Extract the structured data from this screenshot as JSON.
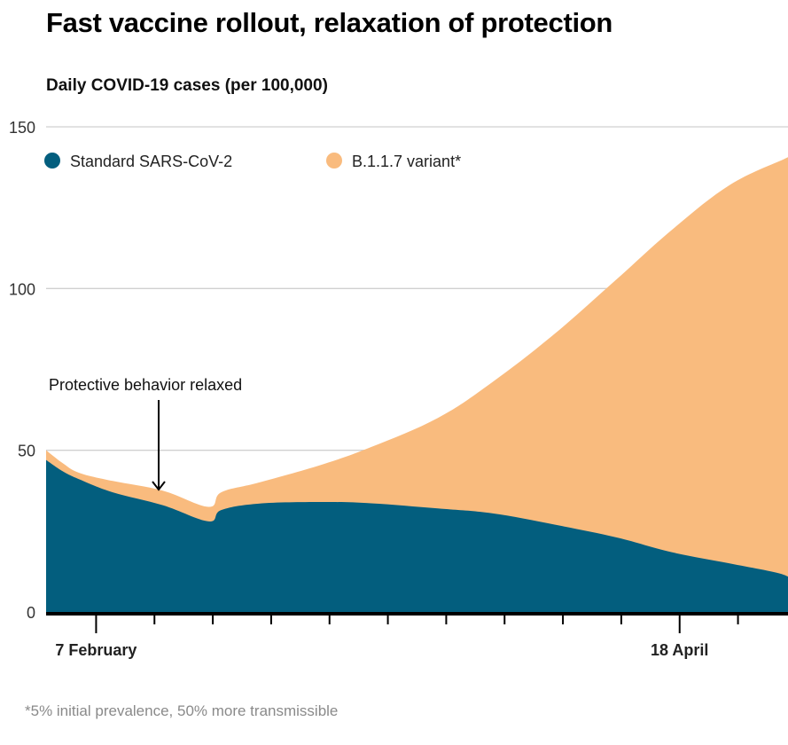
{
  "chart_data": {
    "type": "area",
    "stacked": true,
    "title": "Fast vaccine rollout, relaxation of protection",
    "subtitle": "Daily COVID-19 cases (per 100,000)",
    "xlabel": "",
    "ylabel": "Daily COVID-19 cases (per 100,000)",
    "ylim": [
      0,
      150
    ],
    "yticks": [
      0,
      50,
      100,
      150
    ],
    "ytick_labels": [
      "0",
      "50",
      "100",
      "150"
    ],
    "grid": true,
    "x_unit": "days since start",
    "xlim": [
      0,
      89
    ],
    "xtick_days": [
      6,
      13,
      20,
      27,
      34,
      41,
      48,
      55,
      62,
      69,
      76,
      83
    ],
    "xtick_labels": [
      {
        "day": 6,
        "label": "7 February"
      },
      {
        "day": 76,
        "label": "18 April"
      }
    ],
    "x": [
      0,
      2,
      4,
      8,
      14,
      19.5,
      21,
      25.5,
      33,
      39,
      47,
      53.5,
      61,
      68.5,
      75,
      82,
      88.5,
      89
    ],
    "series": [
      {
        "name": "Standard SARS-CoV-2",
        "color": "#035e7e",
        "values": [
          47,
          43.5,
          41,
          37,
          33,
          28,
          31.5,
          33.5,
          34,
          33.6,
          32,
          30.5,
          27,
          23,
          18.5,
          15,
          11.5,
          9
        ]
      },
      {
        "name": "B.1.1.7 variant*",
        "color": "#f9bb7e",
        "values": [
          3,
          2.5,
          2,
          3.5,
          4.5,
          4.5,
          5.5,
          6.5,
          11.5,
          17.4,
          28,
          40.5,
          59,
          80,
          99.5,
          117,
          128.5,
          131.5
        ]
      }
    ],
    "legend": [
      {
        "label": "Standard SARS-CoV-2",
        "color": "#035e7e"
      },
      {
        "label": "B.1.1.7 variant*",
        "color": "#f9bb7e"
      }
    ],
    "legend_position": "top-left",
    "annotations": [
      {
        "text": "Protective behavior relaxed",
        "day": 14,
        "arrow": true
      }
    ]
  },
  "footnote": "*5% initial prevalence, 50% more transmissible"
}
